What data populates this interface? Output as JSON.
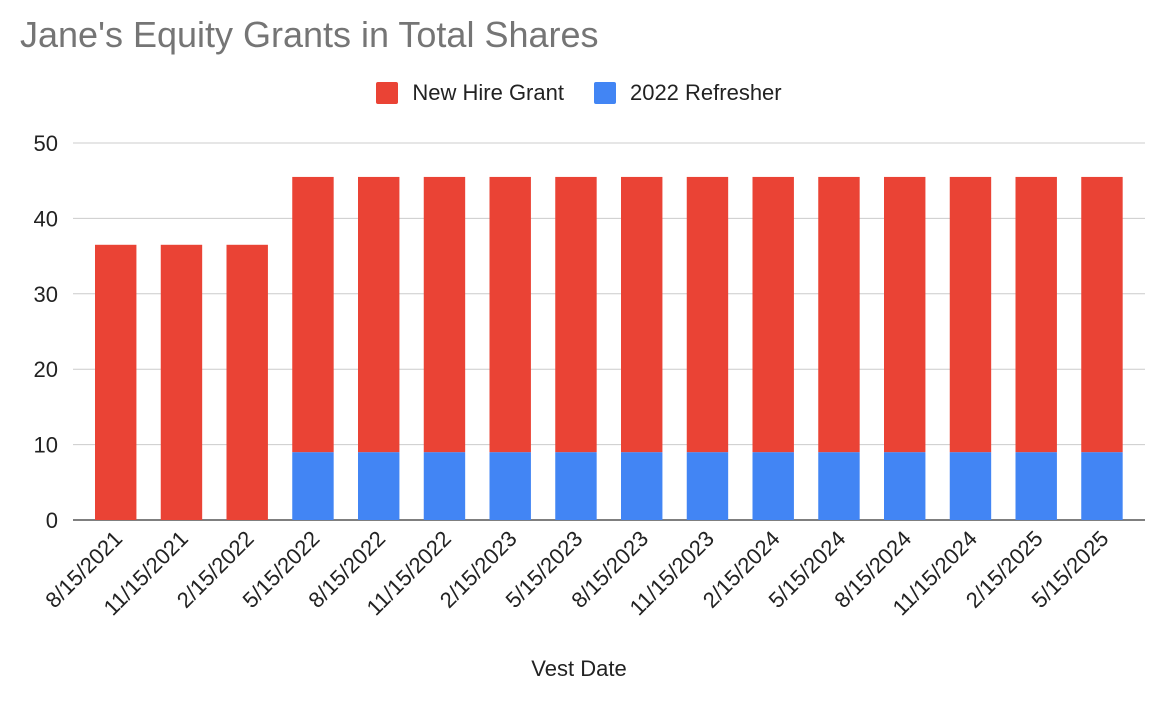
{
  "chart_data": {
    "type": "bar",
    "stacked": true,
    "title": "Jane's Equity Grants in Total Shares",
    "xlabel": "Vest Date",
    "ylabel": "",
    "ylim": [
      0,
      50
    ],
    "yticks": [
      0,
      10,
      20,
      30,
      40,
      50
    ],
    "grid": true,
    "legend_position": "top",
    "categories": [
      "8/15/2021",
      "11/15/2021",
      "2/15/2022",
      "5/15/2022",
      "8/15/2022",
      "11/15/2022",
      "2/15/2023",
      "5/15/2023",
      "8/15/2023",
      "11/15/2023",
      "2/15/2024",
      "5/15/2024",
      "8/15/2024",
      "11/15/2024",
      "2/15/2025",
      "5/15/2025"
    ],
    "series": [
      {
        "name": "2022 Refresher",
        "color": "#4285f4",
        "values": [
          0,
          0,
          0,
          9,
          9,
          9,
          9,
          9,
          9,
          9,
          9,
          9,
          9,
          9,
          9,
          9
        ]
      },
      {
        "name": "New Hire Grant",
        "color": "#ea4335",
        "values": [
          36.5,
          36.5,
          36.5,
          36.5,
          36.5,
          36.5,
          36.5,
          36.5,
          36.5,
          36.5,
          36.5,
          36.5,
          36.5,
          36.5,
          36.5,
          36.5
        ]
      }
    ],
    "legend_order": [
      "New Hire Grant",
      "2022 Refresher"
    ]
  }
}
